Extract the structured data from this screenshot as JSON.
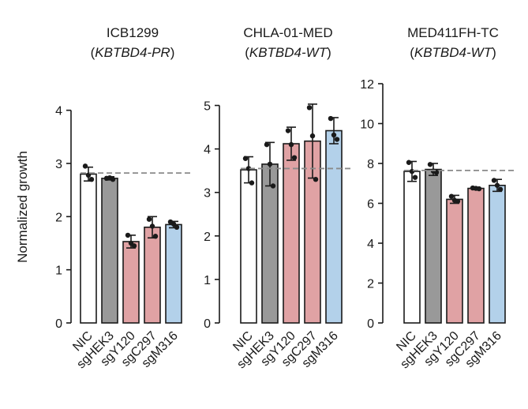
{
  "figure": {
    "ylabel": "Normalized growth",
    "colors": {
      "NIC": "#ffffff",
      "sgHEK3": "#999999",
      "sgY120": "#e0a2a4",
      "sgC297": "#e0a2a4",
      "sgM316": "#b3d1ea",
      "reference_line": "#8a8a8a"
    }
  },
  "chart_data": [
    {
      "type": "bar",
      "title": "ICB1299",
      "subtitle_prefix": "(",
      "subtitle_italic": "KBTBD4-PR",
      "subtitle_suffix": ")",
      "ylabel": "Normalized growth",
      "ylim": [
        0,
        4.5
      ],
      "yticks": [
        "0",
        "1",
        "2",
        "3",
        "4"
      ],
      "categories": [
        "NIC",
        "sgHEK3",
        "sgY120",
        "sgC297",
        "sgM316"
      ],
      "values": [
        2.8,
        2.72,
        1.53,
        1.8,
        1.85
      ],
      "errors": [
        0.13,
        0.03,
        0.12,
        0.2,
        0.06
      ],
      "points": [
        [
          2.95,
          2.78,
          2.7
        ],
        [
          2.72,
          2.73,
          2.7
        ],
        [
          1.65,
          1.5,
          1.45
        ],
        [
          1.95,
          1.82,
          1.63
        ],
        [
          1.9,
          1.86,
          1.8
        ]
      ],
      "reference": 2.82
    },
    {
      "type": "bar",
      "title": "CHLA-01-MED",
      "subtitle_prefix": "(",
      "subtitle_italic": "KBTBD4-WT",
      "subtitle_suffix": ")",
      "ylabel": "",
      "ylim": [
        0,
        5.5
      ],
      "yticks": [
        "0",
        "1",
        "2",
        "3",
        "4",
        "5"
      ],
      "categories": [
        "NIC",
        "sgHEK3",
        "sgY120",
        "sgC297",
        "sgM316"
      ],
      "values": [
        3.52,
        3.65,
        4.12,
        4.18,
        4.42
      ],
      "errors": [
        0.3,
        0.5,
        0.38,
        0.85,
        0.3
      ],
      "points": [
        [
          3.78,
          3.55,
          3.22
        ],
        [
          4.1,
          3.65,
          3.15
        ],
        [
          4.42,
          4.1,
          3.8
        ],
        [
          4.95,
          4.3,
          3.3
        ],
        [
          4.7,
          4.32,
          4.22
        ]
      ],
      "reference": 3.55
    },
    {
      "type": "bar",
      "title": "MED411FH-TC",
      "subtitle_prefix": "(",
      "subtitle_italic": "KBTBD4-WT",
      "subtitle_suffix": ")",
      "ylabel": "",
      "ylim": [
        0,
        12
      ],
      "yticks": [
        "0",
        "2",
        "4",
        "6",
        "8",
        "10",
        "12"
      ],
      "categories": [
        "NIC",
        "sgHEK3",
        "sgY120",
        "sgC297",
        "sgM316"
      ],
      "values": [
        7.6,
        7.7,
        6.2,
        6.75,
        6.9
      ],
      "errors": [
        0.5,
        0.3,
        0.2,
        0.05,
        0.3
      ],
      "points": [
        [
          8.05,
          7.6,
          7.3
        ],
        [
          7.95,
          7.62,
          7.55
        ],
        [
          6.35,
          6.15,
          6.1
        ],
        [
          6.77,
          6.75,
          6.73
        ],
        [
          7.15,
          6.9,
          6.7
        ]
      ],
      "reference": 7.65
    }
  ]
}
